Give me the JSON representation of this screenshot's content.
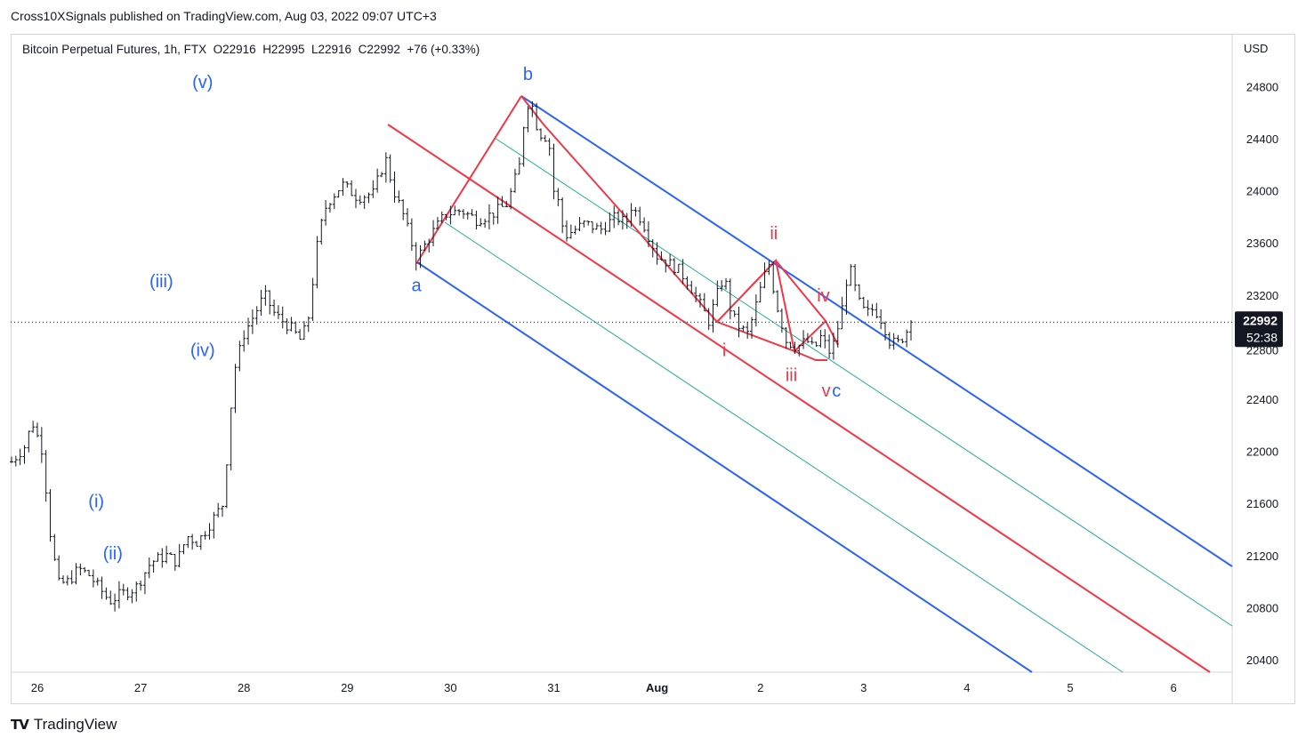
{
  "header": {
    "text": "Cross10XSignals published on TradingView.com, Aug 03, 2022 09:07 UTC+3"
  },
  "legend": {
    "symbol": "Bitcoin Perpetual Futures, 1h, FTX",
    "open": "O22916",
    "high": "H22995",
    "low": "L22916",
    "close": "C22992",
    "change": "+76 (+0.33%)"
  },
  "axis": {
    "currency": "USD"
  },
  "price_tag": {
    "price": "22992",
    "countdown": "52:38",
    "behind_label": "22800"
  },
  "footer": {
    "logo": "TV",
    "brand": "TradingView"
  },
  "colors": {
    "blue": "#2962ff",
    "red": "#f23645",
    "green": "#22ab94",
    "candles": "#131722"
  },
  "chart_data": {
    "type": "bar",
    "title": "Bitcoin Perpetual Futures, 1h, FTX",
    "ylim": [
      20250,
      25050
    ],
    "y_ticks": [
      20400,
      20800,
      21200,
      21600,
      22000,
      22400,
      22800,
      23200,
      23600,
      24000,
      24400,
      24800
    ],
    "x_ticks": [
      {
        "label": "26",
        "day": 0
      },
      {
        "label": "27",
        "day": 1
      },
      {
        "label": "28",
        "day": 2
      },
      {
        "label": "29",
        "day": 3
      },
      {
        "label": "30",
        "day": 4
      },
      {
        "label": "31",
        "day": 5
      },
      {
        "label": "Aug",
        "day": 6
      },
      {
        "label": "2",
        "day": 7
      },
      {
        "label": "3",
        "day": 8
      },
      {
        "label": "4",
        "day": 9
      },
      {
        "label": "5",
        "day": 10
      },
      {
        "label": "6",
        "day": 11
      }
    ],
    "last_price": 22992,
    "price_path": [
      [
        -0.25,
        21920
      ],
      [
        -0.12,
        22040
      ],
      [
        -0.05,
        22230
      ],
      [
        0.05,
        22000
      ],
      [
        0.12,
        21400
      ],
      [
        0.2,
        20980
      ],
      [
        0.3,
        21000
      ],
      [
        0.4,
        21100
      ],
      [
        0.5,
        21050
      ],
      [
        0.6,
        20950
      ],
      [
        0.7,
        20850
      ],
      [
        0.8,
        20900
      ],
      [
        0.95,
        20950
      ],
      [
        1.1,
        21150
      ],
      [
        1.25,
        21200
      ],
      [
        1.35,
        21150
      ],
      [
        1.45,
        21350
      ],
      [
        1.55,
        21300
      ],
      [
        1.65,
        21420
      ],
      [
        1.8,
        21600
      ],
      [
        1.9,
        22600
      ],
      [
        2.0,
        22900
      ],
      [
        2.1,
        23050
      ],
      [
        2.2,
        23200
      ],
      [
        2.3,
        23050
      ],
      [
        2.45,
        22950
      ],
      [
        2.55,
        22850
      ],
      [
        2.62,
        23000
      ],
      [
        2.72,
        23650
      ],
      [
        2.8,
        23900
      ],
      [
        2.95,
        24050
      ],
      [
        3.1,
        23950
      ],
      [
        3.25,
        23980
      ],
      [
        3.37,
        24250
      ],
      [
        3.45,
        24000
      ],
      [
        3.55,
        23800
      ],
      [
        3.67,
        23470
      ],
      [
        3.8,
        23650
      ],
      [
        3.95,
        23820
      ],
      [
        4.1,
        23850
      ],
      [
        4.25,
        23780
      ],
      [
        4.4,
        23820
      ],
      [
        4.55,
        23900
      ],
      [
        4.67,
        24200
      ],
      [
        4.72,
        24600
      ],
      [
        4.77,
        24720
      ],
      [
        4.85,
        24450
      ],
      [
        4.95,
        24400
      ],
      [
        5.0,
        24000
      ],
      [
        5.05,
        23900
      ],
      [
        5.1,
        23650
      ],
      [
        5.2,
        23700
      ],
      [
        5.3,
        23750
      ],
      [
        5.45,
        23700
      ],
      [
        5.6,
        23800
      ],
      [
        5.7,
        23750
      ],
      [
        5.75,
        23880
      ],
      [
        5.85,
        23780
      ],
      [
        5.92,
        23650
      ],
      [
        6.0,
        23500
      ],
      [
        6.1,
        23450
      ],
      [
        6.2,
        23400
      ],
      [
        6.3,
        23300
      ],
      [
        6.4,
        23150
      ],
      [
        6.5,
        23000
      ],
      [
        6.58,
        23200
      ],
      [
        6.65,
        23350
      ],
      [
        6.72,
        23050
      ],
      [
        6.8,
        22950
      ],
      [
        6.88,
        22900
      ],
      [
        6.95,
        23100
      ],
      [
        7.02,
        23300
      ],
      [
        7.08,
        23450
      ],
      [
        7.15,
        23150
      ],
      [
        7.25,
        22850
      ],
      [
        7.35,
        22800
      ],
      [
        7.45,
        22850
      ],
      [
        7.52,
        22780
      ],
      [
        7.6,
        22900
      ],
      [
        7.65,
        22750
      ],
      [
        7.7,
        22800
      ],
      [
        7.75,
        22950
      ],
      [
        7.82,
        23200
      ],
      [
        7.85,
        23450
      ],
      [
        7.9,
        23300
      ],
      [
        7.95,
        23150
      ],
      [
        8.02,
        23050
      ],
      [
        8.1,
        23100
      ],
      [
        8.18,
        23000
      ],
      [
        8.25,
        22850
      ],
      [
        8.32,
        22820
      ],
      [
        8.4,
        22900
      ],
      [
        8.46,
        22992
      ]
    ],
    "annotations": {
      "blue_waves": [
        {
          "label": "(i)",
          "day": 0.57,
          "price": 21570
        },
        {
          "label": "(ii)",
          "day": 0.73,
          "price": 21170
        },
        {
          "label": "(iii)",
          "day": 1.2,
          "price": 23260
        },
        {
          "label": "(iv)",
          "day": 1.6,
          "price": 22730
        },
        {
          "label": "(v)",
          "day": 1.6,
          "price": 24790
        },
        {
          "label": "a",
          "day": 3.67,
          "price": 23230
        },
        {
          "label": "b",
          "day": 4.75,
          "price": 24850
        }
      ],
      "red_waves": [
        {
          "label": "i",
          "day": 6.65,
          "price": 22730
        },
        {
          "label": "ii",
          "day": 7.13,
          "price": 23630
        },
        {
          "label": "iii",
          "day": 7.3,
          "price": 22540
        },
        {
          "label": "iv",
          "day": 7.61,
          "price": 23150
        }
      ],
      "final_label_red": {
        "label": "v",
        "day": 7.68,
        "price": 22420
      },
      "final_label_blue": {
        "label": "c",
        "day": 7.78,
        "price": 22420
      }
    }
  }
}
